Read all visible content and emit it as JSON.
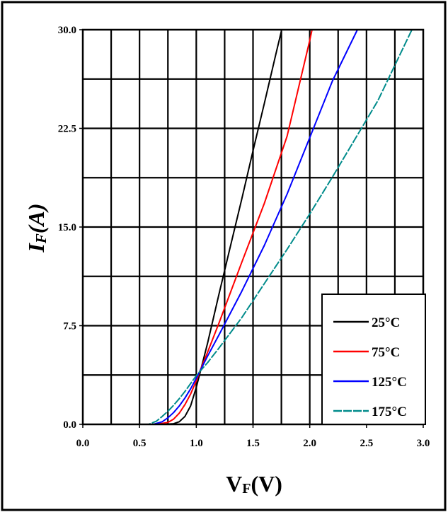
{
  "chart_data": {
    "type": "line",
    "xlabel_main": "V",
    "xlabel_sub": "F",
    "xlabel_tail": "(V)",
    "ylabel_main": "I",
    "ylabel_sub": "F",
    "ylabel_tail": "(A)",
    "xlim": [
      0.0,
      3.0
    ],
    "ylim": [
      0.0,
      30.0
    ],
    "x_ticks": [
      "0.0",
      "0.5",
      "1.0",
      "1.5",
      "2.0",
      "2.5",
      "3.0"
    ],
    "y_ticks": [
      "0.0",
      "7.5",
      "15.0",
      "22.5",
      "30.0"
    ],
    "grid": true,
    "legend_position": "bottom-right",
    "series": [
      {
        "name": "25°C",
        "color": "#000000",
        "dash": false,
        "x": [
          0.0,
          0.7,
          0.8,
          0.85,
          0.9,
          0.95,
          1.0,
          1.03,
          1.1,
          1.2,
          1.3,
          1.4,
          1.5,
          1.6,
          1.7,
          1.75
        ],
        "y": [
          0.0,
          0.0,
          0.05,
          0.2,
          0.6,
          1.4,
          2.8,
          3.8,
          6.2,
          9.9,
          13.5,
          17.1,
          20.8,
          24.4,
          28.1,
          29.9
        ]
      },
      {
        "name": "75°C",
        "color": "#ff0000",
        "dash": false,
        "x": [
          0.0,
          0.65,
          0.75,
          0.8,
          0.85,
          0.9,
          0.95,
          1.0,
          1.03,
          1.1,
          1.2,
          1.4,
          1.6,
          1.8,
          2.0,
          2.02
        ],
        "y": [
          0.0,
          0.0,
          0.15,
          0.4,
          0.85,
          1.5,
          2.3,
          3.3,
          4.0,
          5.5,
          7.7,
          12.3,
          16.8,
          21.9,
          29.2,
          30.0
        ]
      },
      {
        "name": "125°C",
        "color": "#0000ff",
        "dash": false,
        "x": [
          0.0,
          0.62,
          0.7,
          0.75,
          0.8,
          0.85,
          0.9,
          0.95,
          1.0,
          1.03,
          1.1,
          1.2,
          1.4,
          1.6,
          1.8,
          2.0,
          2.2,
          2.42
        ],
        "y": [
          0.0,
          0.0,
          0.2,
          0.5,
          0.9,
          1.4,
          2.0,
          2.7,
          3.5,
          4.0,
          5.2,
          6.8,
          10.1,
          13.6,
          17.5,
          21.8,
          26.1,
          30.0
        ]
      },
      {
        "name": "175°C",
        "color": "#008b8b",
        "dash": true,
        "x": [
          0.0,
          0.58,
          0.65,
          0.7,
          0.75,
          0.8,
          0.85,
          0.9,
          0.95,
          1.0,
          1.03,
          1.1,
          1.2,
          1.4,
          1.6,
          1.8,
          2.0,
          2.2,
          2.4,
          2.6,
          2.9
        ],
        "y": [
          0.0,
          0.0,
          0.25,
          0.6,
          1.0,
          1.45,
          1.95,
          2.5,
          3.1,
          3.7,
          4.0,
          4.7,
          5.8,
          8.1,
          10.7,
          13.3,
          16.0,
          18.8,
          21.7,
          24.6,
          30.0
        ]
      }
    ]
  }
}
